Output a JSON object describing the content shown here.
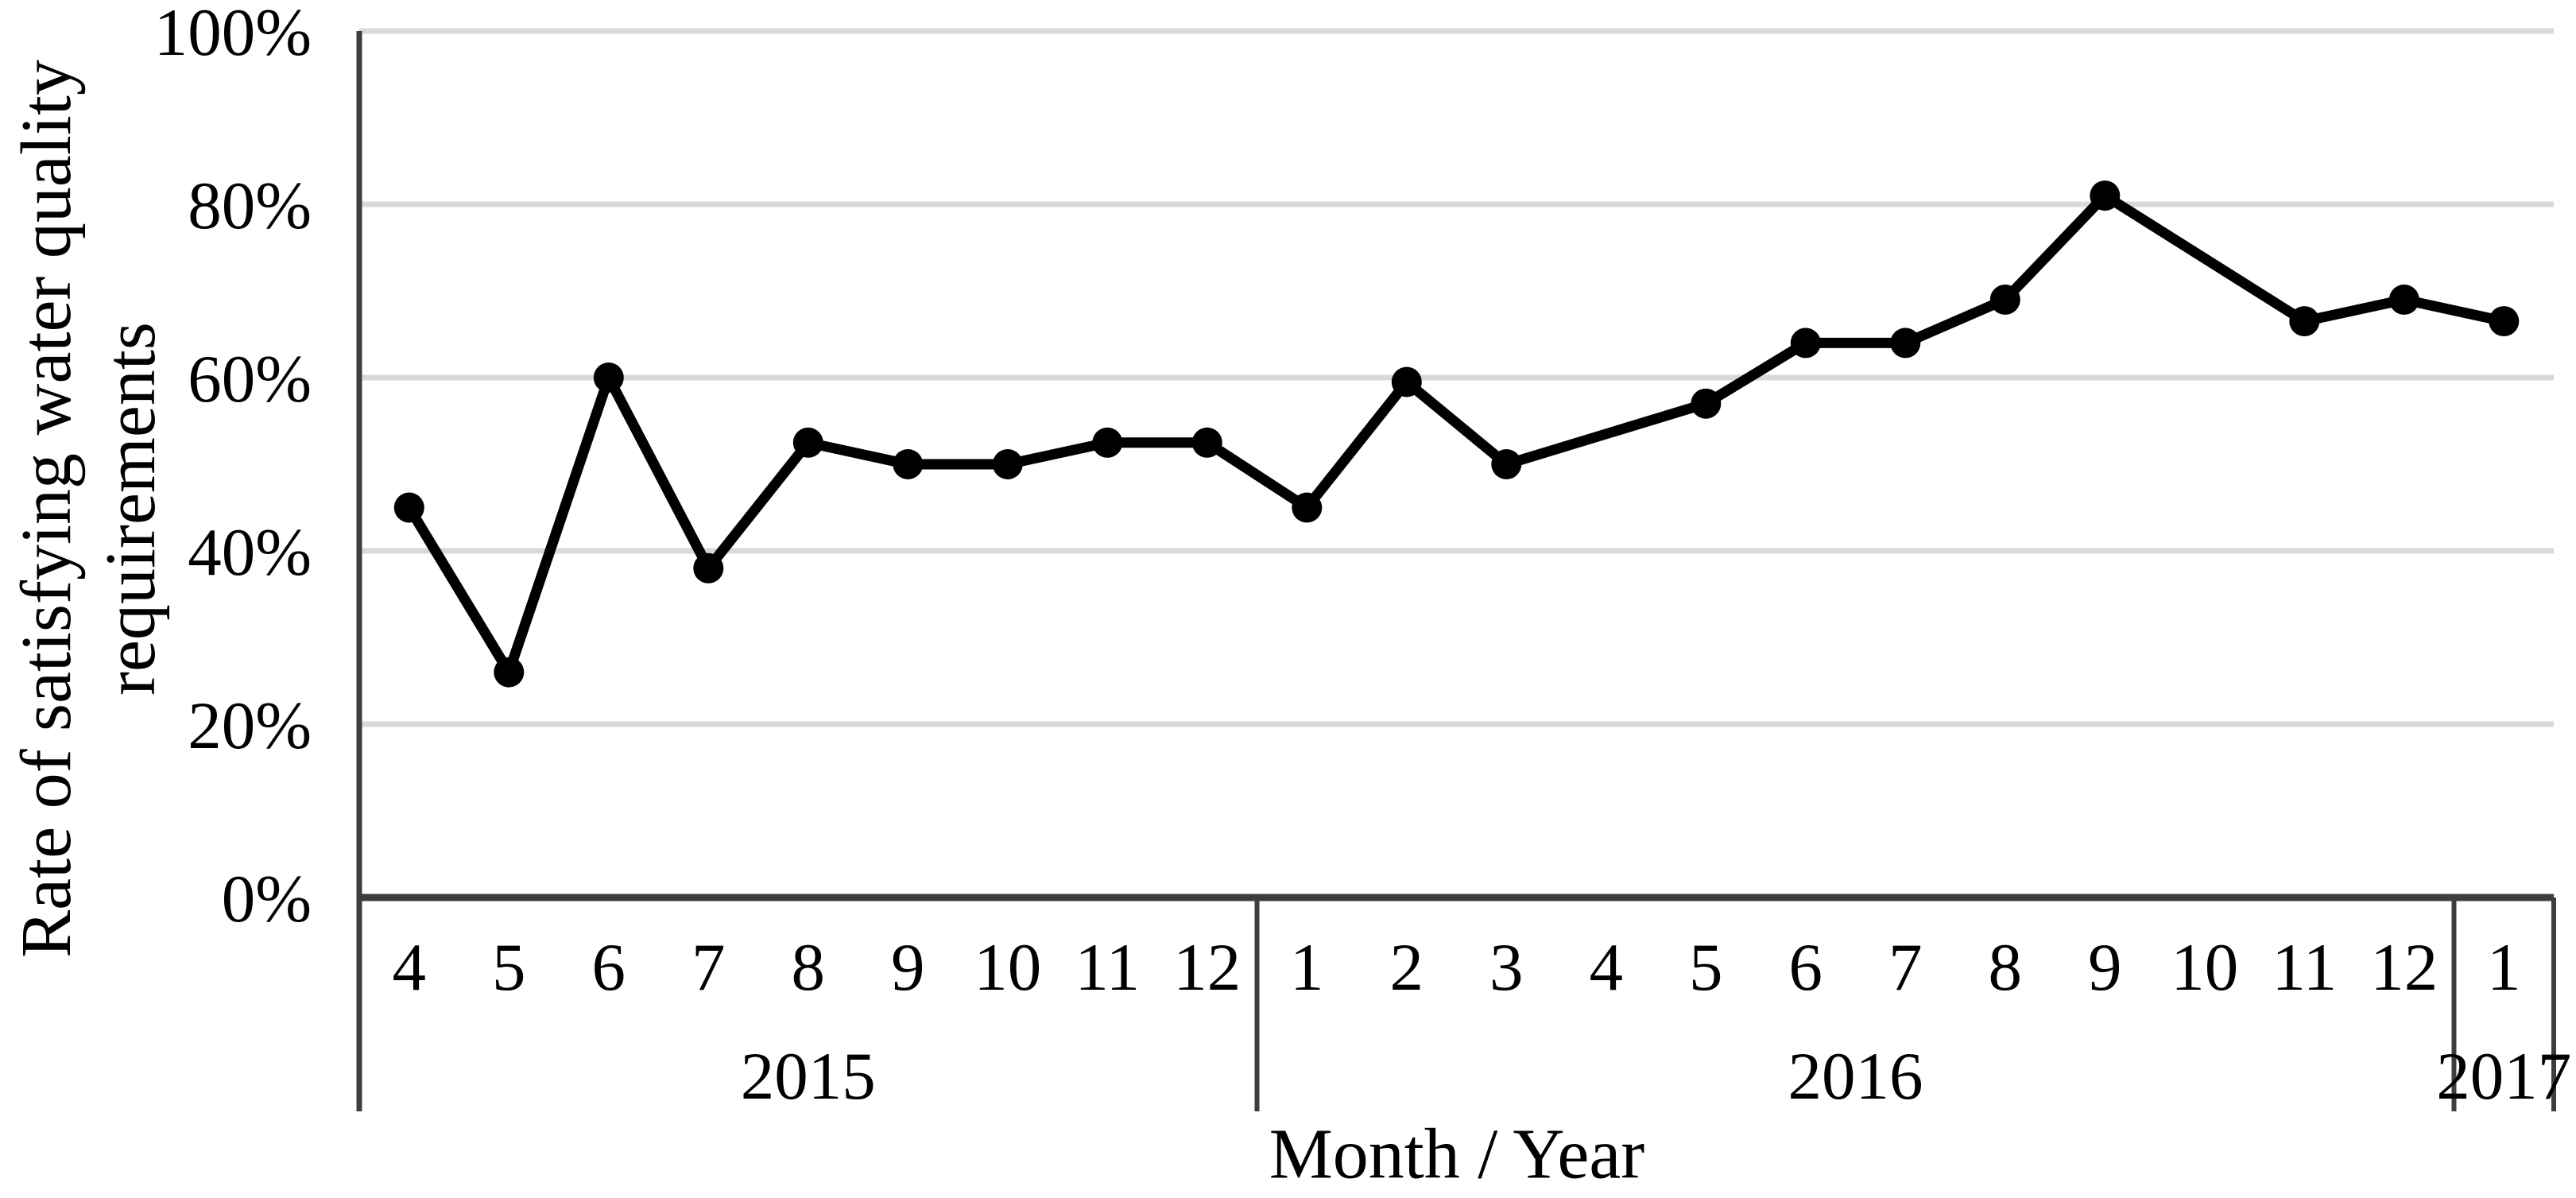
{
  "chart_data": {
    "type": "line",
    "title": "",
    "xlabel": "Month / Year",
    "ylabel": "Rate of satisfying water quality requirements",
    "ylabel_lines": [
      "Rate of satisfying water quality",
      "requirements"
    ],
    "ylim": [
      0,
      100
    ],
    "ytick_step": 20,
    "yticks": [
      "0%",
      "20%",
      "40%",
      "60%",
      "80%",
      "100%"
    ],
    "grid": true,
    "legend": false,
    "marker": "circle",
    "groups": [
      {
        "year": "2015",
        "months": [
          "4",
          "5",
          "6",
          "7",
          "8",
          "9",
          "10",
          "11",
          "12"
        ]
      },
      {
        "year": "2016",
        "months": [
          "1",
          "2",
          "3",
          "4",
          "5",
          "6",
          "7",
          "8",
          "9",
          "10",
          "11",
          "12"
        ]
      },
      {
        "year": "2017",
        "months": [
          "1"
        ]
      }
    ],
    "series": [
      {
        "name": "Rate of satisfying water quality requirements",
        "values": [
          45,
          26,
          60,
          38,
          52.5,
          50,
          50,
          52.5,
          52.5,
          45,
          59.5,
          50,
          null,
          57,
          64,
          64,
          69,
          81,
          null,
          66.5,
          69,
          66.5
        ]
      }
    ],
    "colors": {
      "series": "#000000",
      "gridline": "#d9d9d9",
      "axis": "#3d3d3d",
      "background": "#ffffff",
      "text": "#000000"
    }
  }
}
